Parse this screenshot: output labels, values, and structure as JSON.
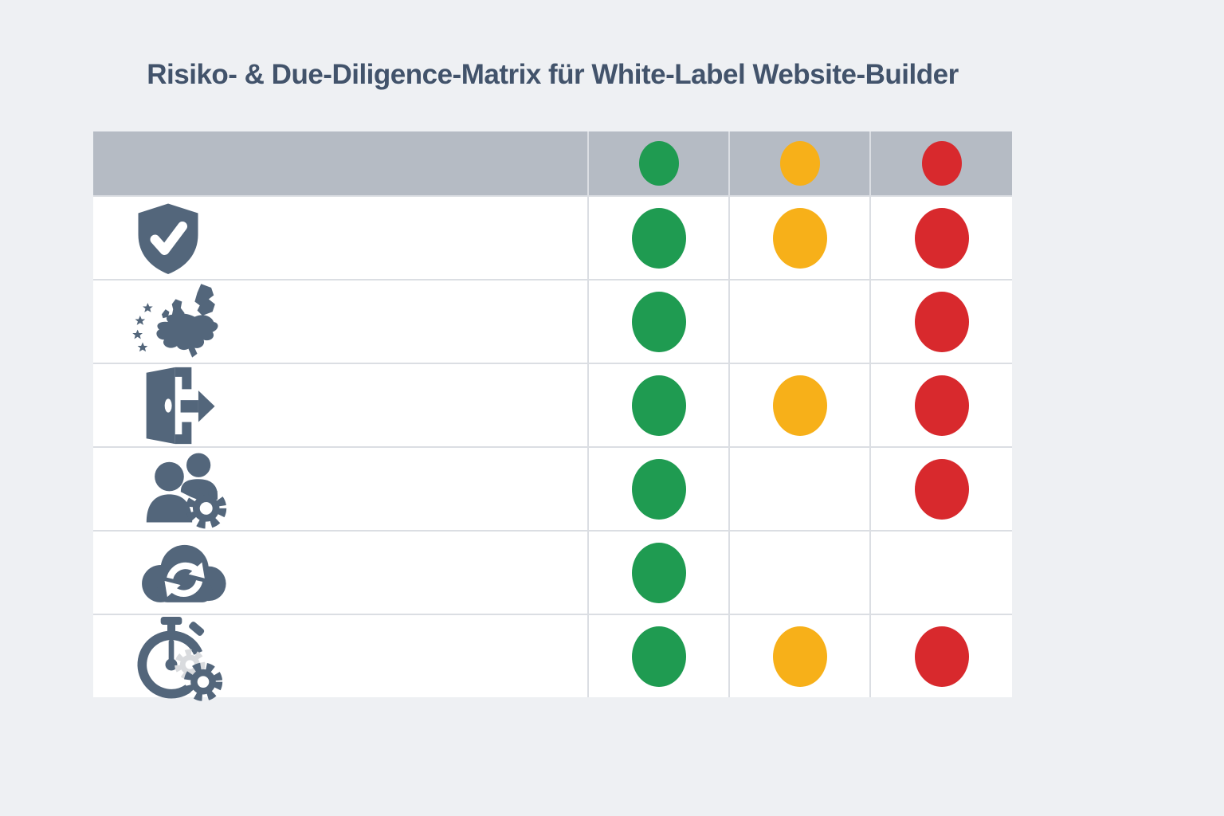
{
  "title": "Risiko- & Due-Diligence-Matrix für White-Label Website-Builder",
  "colors": {
    "page_background": "#eef0f3",
    "title_text": "#42536b",
    "header_background": "#b5bbc4",
    "icon": "#53667b",
    "gridline": "#dbdee3",
    "green": "#1f9b51",
    "amber": "#f7b019",
    "red": "#d8292d"
  },
  "table": {
    "header": {
      "legend_dots": [
        {
          "name": "green-legend-dot",
          "color_key": "green"
        },
        {
          "name": "amber-legend-dot",
          "color_key": "amber"
        },
        {
          "name": "red-legend-dot",
          "color_key": "red"
        }
      ]
    },
    "rows": [
      {
        "icon": "shield-check-icon",
        "dots": {
          "green": true,
          "amber": true,
          "red": true
        }
      },
      {
        "icon": "europe-map-icon",
        "dots": {
          "green": true,
          "amber": false,
          "red": true
        }
      },
      {
        "icon": "door-exit-icon",
        "dots": {
          "green": true,
          "amber": true,
          "red": true
        }
      },
      {
        "icon": "users-gear-icon",
        "dots": {
          "green": true,
          "amber": false,
          "red": true
        }
      },
      {
        "icon": "cloud-sync-icon",
        "dots": {
          "green": true,
          "amber": false,
          "red": false
        }
      },
      {
        "icon": "stopwatch-gear-icon",
        "dots": {
          "green": true,
          "amber": true,
          "red": true
        }
      }
    ]
  },
  "chart_data": {
    "type": "table",
    "title": "Risiko- & Due-Diligence-Matrix für White-Label Website-Builder",
    "columns": [
      "green",
      "amber",
      "red"
    ],
    "rows": [
      {
        "row_icon": "shield-check",
        "green": true,
        "amber": true,
        "red": true
      },
      {
        "row_icon": "europe-map",
        "green": true,
        "amber": false,
        "red": true
      },
      {
        "row_icon": "door-exit",
        "green": true,
        "amber": true,
        "red": true
      },
      {
        "row_icon": "users-gear",
        "green": true,
        "amber": false,
        "red": true
      },
      {
        "row_icon": "cloud-sync",
        "green": true,
        "amber": false,
        "red": false
      },
      {
        "row_icon": "stopwatch-gear",
        "green": true,
        "amber": true,
        "red": true
      }
    ],
    "legend_position": "header-row",
    "notes_layout": "row labels are pictograms only, no text labels rendered"
  }
}
